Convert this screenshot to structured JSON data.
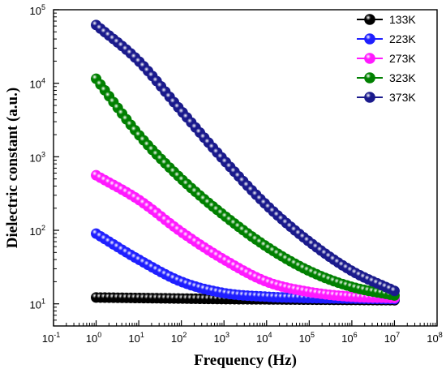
{
  "chart_data": {
    "type": "scatter",
    "title": "",
    "xlabel": "Frequency (Hz)",
    "ylabel": "Dielectric constant (a.u.)",
    "xscale": "log",
    "yscale": "log",
    "xlim": [
      0.1,
      100000000
    ],
    "ylim": [
      5,
      100000
    ],
    "x_tick_labels": [
      {
        "base": "10",
        "exp": "-1"
      },
      {
        "base": "10",
        "exp": "0"
      },
      {
        "base": "10",
        "exp": "1"
      },
      {
        "base": "10",
        "exp": "2"
      },
      {
        "base": "10",
        "exp": "3"
      },
      {
        "base": "10",
        "exp": "4"
      },
      {
        "base": "10",
        "exp": "5"
      },
      {
        "base": "10",
        "exp": "6"
      },
      {
        "base": "10",
        "exp": "7"
      },
      {
        "base": "10",
        "exp": "8"
      }
    ],
    "y_tick_labels": [
      {
        "base": "10",
        "exp": "1"
      },
      {
        "base": "10",
        "exp": "2"
      },
      {
        "base": "10",
        "exp": "3"
      },
      {
        "base": "10",
        "exp": "4"
      },
      {
        "base": "10",
        "exp": "5"
      }
    ],
    "grid": false,
    "legend_position": "top-right",
    "series": [
      {
        "name": "133K",
        "color": "#000000",
        "marker": "sphere",
        "x": [
          1,
          10,
          100,
          1000,
          10000,
          100000,
          1000000,
          10000000
        ],
        "y": [
          12.2,
          12.0,
          11.8,
          11.6,
          11.5,
          11.4,
          11.3,
          11.2
        ]
      },
      {
        "name": "223K",
        "color": "#1f1fff",
        "marker": "sphere",
        "x": [
          1,
          10,
          100,
          1000,
          10000,
          100000,
          1000000,
          10000000
        ],
        "y": [
          90,
          40,
          20,
          14,
          12.5,
          12,
          11.8,
          11.6
        ]
      },
      {
        "name": "273K",
        "color": "#ff19ff",
        "marker": "sphere",
        "x": [
          1,
          10,
          100,
          1000,
          10000,
          100000,
          1000000,
          10000000
        ],
        "y": [
          560,
          260,
          95,
          40,
          20,
          14.5,
          12.5,
          12
        ]
      },
      {
        "name": "323K",
        "color": "#008000",
        "marker": "sphere",
        "x": [
          1,
          10,
          100,
          1000,
          10000,
          100000,
          1000000,
          10000000
        ],
        "y": [
          11500,
          2000,
          500,
          160,
          60,
          28,
          17,
          13
        ]
      },
      {
        "name": "373K",
        "color": "#1a1a8c",
        "marker": "sphere",
        "x": [
          1,
          10,
          100,
          1000,
          10000,
          100000,
          1000000,
          10000000
        ],
        "y": [
          62000,
          20000,
          4200,
          900,
          220,
          70,
          28,
          15
        ]
      }
    ]
  }
}
